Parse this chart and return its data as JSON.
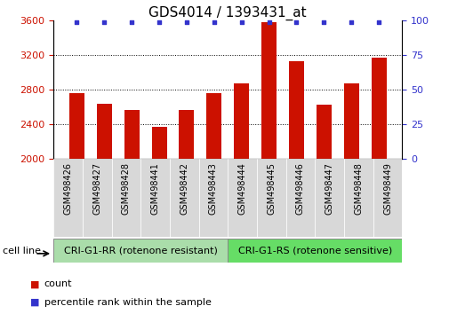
{
  "title": "GDS4014 / 1393431_at",
  "samples": [
    "GSM498426",
    "GSM498427",
    "GSM498428",
    "GSM498441",
    "GSM498442",
    "GSM498443",
    "GSM498444",
    "GSM498445",
    "GSM498446",
    "GSM498447",
    "GSM498448",
    "GSM498449"
  ],
  "counts": [
    2760,
    2630,
    2560,
    2370,
    2560,
    2760,
    2870,
    3580,
    3130,
    2620,
    2870,
    3170
  ],
  "bar_color": "#cc1100",
  "dot_color": "#3333cc",
  "ylim_left": [
    2000,
    3600
  ],
  "ylim_right": [
    0,
    100
  ],
  "yticks_left": [
    2000,
    2400,
    2800,
    3200,
    3600
  ],
  "yticks_right": [
    0,
    25,
    50,
    75,
    100
  ],
  "group1_label": "CRI-G1-RR (rotenone resistant)",
  "group2_label": "CRI-G1-RS (rotenone sensitive)",
  "group1_count": 6,
  "group2_count": 6,
  "group1_color": "#aaddaa",
  "group2_color": "#66dd66",
  "cell_line_label": "cell line",
  "legend_count_label": "count",
  "legend_pct_label": "percentile rank within the sample",
  "title_fontsize": 11,
  "tick_fontsize": 8,
  "background_color": "#ffffff"
}
